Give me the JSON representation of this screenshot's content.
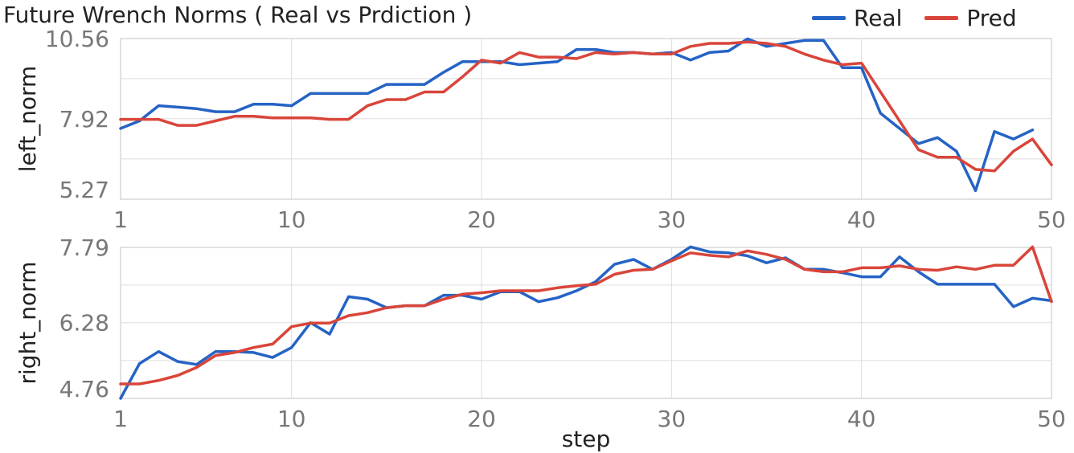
{
  "title": "Future Wrench Norms ( Real vs Prdiction )",
  "legend": [
    {
      "label": "Real",
      "color": "#2563c5"
    },
    {
      "label": "Pred",
      "color": "#d9453a"
    }
  ],
  "chart_data": [
    {
      "type": "line",
      "xlabel": "",
      "ylabel": "left_norm",
      "xlim": [
        1,
        50
      ],
      "ylim": [
        5.27,
        10.56
      ],
      "xticks": [
        1,
        10,
        20,
        30,
        40,
        50
      ],
      "yticks": [
        5.27,
        7.92,
        10.56
      ],
      "grid": true,
      "x": [
        1,
        2,
        3,
        4,
        5,
        6,
        7,
        8,
        9,
        10,
        11,
        12,
        13,
        14,
        15,
        16,
        17,
        18,
        19,
        20,
        21,
        22,
        23,
        24,
        25,
        26,
        27,
        28,
        29,
        30,
        31,
        32,
        33,
        34,
        35,
        36,
        37,
        38,
        39,
        40,
        41,
        42,
        43,
        44,
        45,
        46,
        47,
        48,
        49,
        50
      ],
      "series": [
        {
          "name": "Real",
          "color": "#2563c5",
          "values": [
            7.6,
            7.85,
            8.35,
            8.3,
            8.25,
            8.15,
            8.15,
            8.4,
            8.4,
            8.35,
            8.75,
            8.75,
            8.75,
            8.75,
            9.05,
            9.05,
            9.05,
            9.45,
            9.8,
            9.8,
            9.8,
            9.7,
            9.75,
            9.8,
            10.2,
            10.2,
            10.1,
            10.1,
            10.05,
            10.1,
            9.85,
            10.1,
            10.15,
            10.55,
            10.3,
            10.4,
            10.5,
            10.5,
            9.6,
            9.6,
            8.1,
            7.6,
            7.1,
            7.3,
            6.85,
            5.55,
            7.5,
            7.25,
            7.55,
            null
          ]
        },
        {
          "name": "Pred",
          "color": "#d9453a",
          "values": [
            7.9,
            7.9,
            7.9,
            7.7,
            7.7,
            7.85,
            8.0,
            8.0,
            7.95,
            7.95,
            7.95,
            7.9,
            7.9,
            8.35,
            8.55,
            8.55,
            8.8,
            8.8,
            9.3,
            9.85,
            9.75,
            10.1,
            9.95,
            9.95,
            9.9,
            10.1,
            10.05,
            10.1,
            10.05,
            10.05,
            10.3,
            10.4,
            10.4,
            10.45,
            10.4,
            10.3,
            10.05,
            9.85,
            9.7,
            9.75,
            null,
            null,
            6.9,
            6.65,
            6.65,
            6.25,
            6.2,
            6.85,
            7.25,
            6.4
          ]
        }
      ]
    },
    {
      "type": "line",
      "xlabel": "step",
      "ylabel": "right_norm",
      "xlim": [
        1,
        50
      ],
      "ylim": [
        4.76,
        7.79
      ],
      "xticks": [
        1,
        10,
        20,
        30,
        40,
        50
      ],
      "yticks": [
        4.76,
        6.28,
        7.79
      ],
      "grid": true,
      "x": [
        1,
        2,
        3,
        4,
        5,
        6,
        7,
        8,
        9,
        10,
        11,
        12,
        13,
        14,
        15,
        16,
        17,
        18,
        19,
        20,
        21,
        22,
        23,
        24,
        25,
        26,
        27,
        28,
        29,
        30,
        31,
        32,
        33,
        34,
        35,
        36,
        37,
        38,
        39,
        40,
        41,
        42,
        43,
        44,
        45,
        46,
        47,
        48,
        49,
        50
      ],
      "series": [
        {
          "name": "Real",
          "color": "#2563c5",
          "values": [
            4.76,
            5.46,
            5.7,
            5.5,
            5.44,
            5.7,
            5.7,
            5.68,
            5.58,
            5.78,
            6.28,
            6.05,
            6.8,
            6.75,
            6.58,
            6.62,
            6.62,
            6.83,
            6.83,
            6.75,
            6.9,
            6.9,
            6.7,
            6.78,
            6.92,
            7.1,
            7.45,
            7.55,
            7.35,
            7.55,
            7.8,
            7.7,
            7.68,
            7.62,
            7.48,
            7.58,
            7.35,
            7.35,
            7.28,
            7.2,
            7.2,
            7.6,
            7.3,
            7.05,
            7.05,
            7.05,
            7.05,
            6.6,
            6.77,
            6.72
          ]
        },
        {
          "name": "Pred",
          "color": "#d9453a",
          "values": [
            5.05,
            5.05,
            5.12,
            5.22,
            5.38,
            5.62,
            5.68,
            5.78,
            5.85,
            6.2,
            6.27,
            6.27,
            6.42,
            6.48,
            6.58,
            6.62,
            6.62,
            6.75,
            6.85,
            6.88,
            6.92,
            6.92,
            6.92,
            6.98,
            7.02,
            7.05,
            7.25,
            7.33,
            7.35,
            7.52,
            7.68,
            7.63,
            7.6,
            7.72,
            7.65,
            7.55,
            7.35,
            7.3,
            7.3,
            7.38,
            7.38,
            7.42,
            7.35,
            7.33,
            7.4,
            7.35,
            7.43,
            7.43,
            7.8,
            6.7
          ]
        }
      ]
    }
  ]
}
